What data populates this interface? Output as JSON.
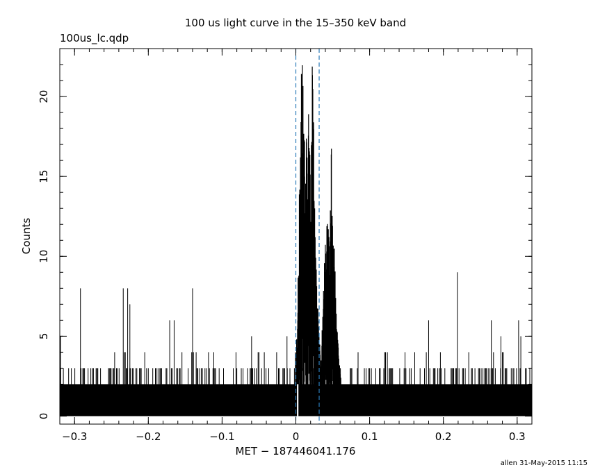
{
  "title": "100 us light curve in the 15–350 keV band",
  "file_label": "100us_lc.qdp",
  "footer": "allen 31-May-2015 11:15",
  "chart_data": {
    "type": "line",
    "xlabel": "MET − 187446041.176",
    "ylabel": "Counts",
    "xlim": [
      -0.32,
      0.32
    ],
    "ylim": [
      -0.5,
      23.0
    ],
    "x_ticks": [
      -0.3,
      -0.2,
      -0.1,
      0,
      0.1,
      0.2,
      0.3
    ],
    "x_tick_labels": [
      "−0.3",
      "−0.2",
      "−0.1",
      "0",
      "0.1",
      "0.2",
      "0.3"
    ],
    "y_ticks": [
      0,
      5,
      10,
      15,
      20
    ],
    "y_tick_labels": [
      "0",
      "5",
      "10",
      "15",
      "20"
    ],
    "binsize": 0.0001,
    "background_level": [
      0,
      2
    ],
    "vlines": [
      0.0,
      0.0316
    ],
    "vline_color": "#2a7ab8",
    "line_color": "#000000",
    "grid": false,
    "series": [
      {
        "name": "",
        "x": [
          0.0,
          0.002,
          0.004,
          0.006,
          0.008,
          0.01,
          0.012,
          0.014,
          0.016,
          0.018,
          0.02,
          0.022,
          0.024,
          0.026,
          0.028,
          0.03,
          0.032,
          0.034,
          0.036,
          0.038,
          0.04,
          0.042,
          0.044,
          0.046,
          0.048,
          0.05,
          0.052,
          0.054,
          0.056,
          0.058,
          0.06,
          0.062,
          0.064
        ],
        "y": [
          3,
          7,
          12,
          19,
          23,
          21,
          17,
          20,
          15,
          22,
          13,
          23,
          20,
          12,
          9,
          7,
          5,
          4,
          6,
          9,
          11,
          14,
          12,
          10,
          18,
          15,
          11,
          8,
          6,
          4,
          3,
          2,
          1
        ]
      }
    ],
    "spikes": [
      {
        "x": -0.292,
        "y": 8
      },
      {
        "x": -0.234,
        "y": 8
      },
      {
        "x": -0.228,
        "y": 8
      },
      {
        "x": -0.225,
        "y": 7
      },
      {
        "x": -0.171,
        "y": 6
      },
      {
        "x": -0.165,
        "y": 6
      },
      {
        "x": -0.14,
        "y": 8
      },
      {
        "x": -0.06,
        "y": 5
      },
      {
        "x": -0.012,
        "y": 5
      },
      {
        "x": 0.18,
        "y": 6
      },
      {
        "x": 0.219,
        "y": 9
      },
      {
        "x": 0.265,
        "y": 6
      },
      {
        "x": 0.278,
        "y": 5
      },
      {
        "x": 0.302,
        "y": 6
      },
      {
        "x": 0.305,
        "y": 5
      },
      {
        "x": -0.319,
        "y": 5
      }
    ]
  }
}
